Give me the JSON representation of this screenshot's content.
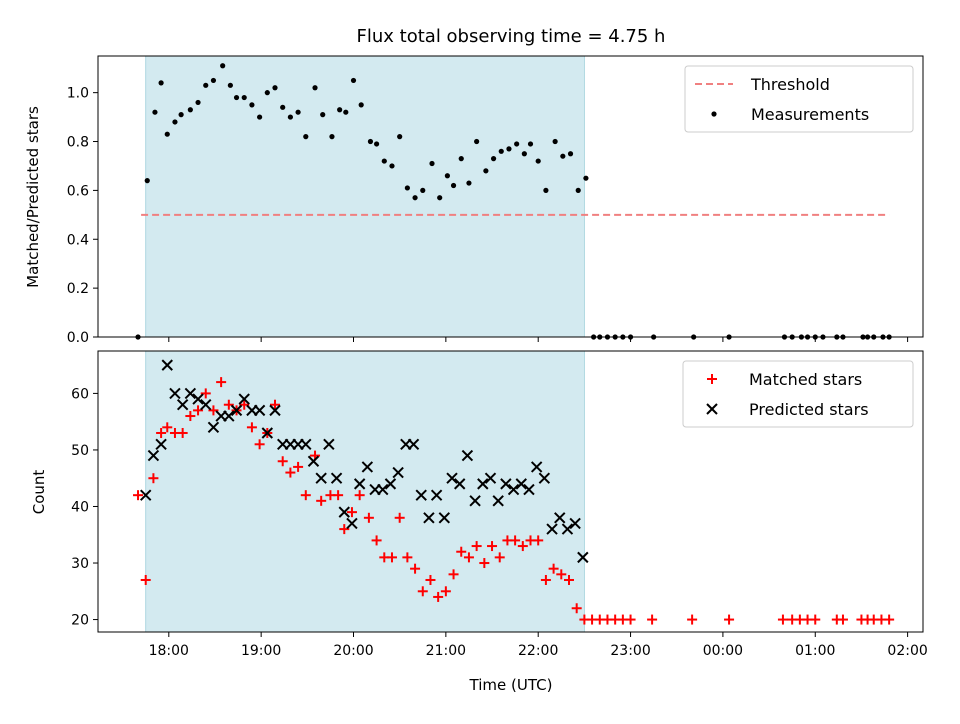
{
  "chart_data": [
    {
      "type": "scatter",
      "title": "Flux total observing time = 4.75 h",
      "xlabel": "",
      "ylabel": "Matched/Predicted stars",
      "ylim": [
        0,
        1.15
      ],
      "xlim": [
        "17:14",
        "02:10"
      ],
      "yticks": [
        "0.0",
        "0.2",
        "0.4",
        "0.6",
        "0.8",
        "1.0"
      ],
      "shaded_interval": {
        "start": "17:45",
        "end": "22:30",
        "color": "#d3eaf0"
      },
      "legend": {
        "position": "top-right",
        "entries": [
          "Threshold",
          "Measurements"
        ]
      },
      "threshold": {
        "name": "Threshold",
        "value": 0.5,
        "x_start": "17:42",
        "x_end": "01:48",
        "color": "#f08080"
      },
      "series": [
        {
          "name": "Measurements",
          "color": "#000000",
          "points": [
            [
              "17:40",
              0.0
            ],
            [
              "17:46",
              0.64
            ],
            [
              "17:51",
              0.92
            ],
            [
              "17:55",
              1.04
            ],
            [
              "17:59",
              0.83
            ],
            [
              "18:04",
              0.88
            ],
            [
              "18:08",
              0.91
            ],
            [
              "18:14",
              0.93
            ],
            [
              "18:19",
              0.96
            ],
            [
              "18:24",
              1.03
            ],
            [
              "18:29",
              1.05
            ],
            [
              "18:35",
              1.11
            ],
            [
              "18:40",
              1.03
            ],
            [
              "18:44",
              0.98
            ],
            [
              "18:49",
              0.98
            ],
            [
              "18:54",
              0.95
            ],
            [
              "18:59",
              0.9
            ],
            [
              "19:04",
              1.0
            ],
            [
              "19:09",
              1.02
            ],
            [
              "19:14",
              0.94
            ],
            [
              "19:19",
              0.9
            ],
            [
              "19:24",
              0.92
            ],
            [
              "19:29",
              0.82
            ],
            [
              "19:35",
              1.02
            ],
            [
              "19:40",
              0.91
            ],
            [
              "19:46",
              0.82
            ],
            [
              "19:51",
              0.93
            ],
            [
              "19:55",
              0.92
            ],
            [
              "20:00",
              1.05
            ],
            [
              "20:05",
              0.95
            ],
            [
              "20:11",
              0.8
            ],
            [
              "20:15",
              0.79
            ],
            [
              "20:20",
              0.72
            ],
            [
              "20:25",
              0.7
            ],
            [
              "20:30",
              0.82
            ],
            [
              "20:35",
              0.61
            ],
            [
              "20:40",
              0.57
            ],
            [
              "20:45",
              0.6
            ],
            [
              "20:51",
              0.71
            ],
            [
              "20:56",
              0.57
            ],
            [
              "21:01",
              0.66
            ],
            [
              "21:05",
              0.62
            ],
            [
              "21:10",
              0.73
            ],
            [
              "21:15",
              0.63
            ],
            [
              "21:20",
              0.8
            ],
            [
              "21:26",
              0.68
            ],
            [
              "21:31",
              0.73
            ],
            [
              "21:36",
              0.76
            ],
            [
              "21:41",
              0.77
            ],
            [
              "21:46",
              0.79
            ],
            [
              "21:51",
              0.75
            ],
            [
              "21:55",
              0.79
            ],
            [
              "22:00",
              0.72
            ],
            [
              "22:05",
              0.6
            ],
            [
              "22:11",
              0.8
            ],
            [
              "22:16",
              0.74
            ],
            [
              "22:21",
              0.75
            ],
            [
              "22:26",
              0.6
            ],
            [
              "22:31",
              0.65
            ],
            [
              "22:36",
              0.0
            ],
            [
              "22:40",
              0.0
            ],
            [
              "22:45",
              0.0
            ],
            [
              "22:50",
              0.0
            ],
            [
              "22:55",
              0.0
            ],
            [
              "23:00",
              0.0
            ],
            [
              "23:15",
              0.0
            ],
            [
              "23:41",
              0.0
            ],
            [
              "00:04",
              0.0
            ],
            [
              "00:40",
              0.0
            ],
            [
              "00:45",
              0.0
            ],
            [
              "00:51",
              0.0
            ],
            [
              "00:55",
              0.0
            ],
            [
              "01:00",
              0.0
            ],
            [
              "01:05",
              0.0
            ],
            [
              "01:14",
              0.0
            ],
            [
              "01:18",
              0.0
            ],
            [
              "01:31",
              0.0
            ],
            [
              "01:34",
              0.0
            ],
            [
              "01:38",
              0.0
            ],
            [
              "01:44",
              0.0
            ],
            [
              "01:48",
              0.0
            ]
          ]
        }
      ]
    },
    {
      "type": "scatter",
      "title": "",
      "xlabel": "Time (UTC)",
      "ylabel": "Count",
      "ylim": [
        17.8,
        67.5
      ],
      "xlim": [
        "17:14",
        "02:10"
      ],
      "yticks": [
        "20",
        "30",
        "40",
        "50",
        "60"
      ],
      "xticks": [
        "18:00",
        "19:00",
        "20:00",
        "21:00",
        "22:00",
        "23:00",
        "00:00",
        "01:00",
        "02:00"
      ],
      "shaded_interval": {
        "start": "17:45",
        "end": "22:30",
        "color": "#d3eaf0"
      },
      "legend": {
        "position": "top-right",
        "entries": [
          "Matched stars",
          "Predicted stars"
        ]
      },
      "series": [
        {
          "name": "Matched stars",
          "marker": "plus",
          "color": "#ff0000",
          "points": [
            [
              "17:40",
              42
            ],
            [
              "17:45",
              27
            ],
            [
              "17:50",
              45
            ],
            [
              "17:55",
              53
            ],
            [
              "17:59",
              54
            ],
            [
              "18:04",
              53
            ],
            [
              "18:09",
              53
            ],
            [
              "18:14",
              56
            ],
            [
              "18:19",
              57
            ],
            [
              "18:24",
              60
            ],
            [
              "18:29",
              57
            ],
            [
              "18:34",
              62
            ],
            [
              "18:39",
              58
            ],
            [
              "18:44",
              57
            ],
            [
              "18:49",
              58
            ],
            [
              "18:54",
              54
            ],
            [
              "18:59",
              51
            ],
            [
              "19:04",
              53
            ],
            [
              "19:09",
              58
            ],
            [
              "19:14",
              48
            ],
            [
              "19:19",
              46
            ],
            [
              "19:24",
              47
            ],
            [
              "19:29",
              42
            ],
            [
              "19:35",
              49
            ],
            [
              "19:39",
              41
            ],
            [
              "19:45",
              42
            ],
            [
              "19:50",
              42
            ],
            [
              "19:54",
              36
            ],
            [
              "19:59",
              39
            ],
            [
              "20:04",
              42
            ],
            [
              "20:10",
              38
            ],
            [
              "20:15",
              34
            ],
            [
              "20:20",
              31
            ],
            [
              "20:25",
              31
            ],
            [
              "20:30",
              38
            ],
            [
              "20:35",
              31
            ],
            [
              "20:40",
              29
            ],
            [
              "20:45",
              25
            ],
            [
              "20:50",
              27
            ],
            [
              "20:55",
              24
            ],
            [
              "21:00",
              25
            ],
            [
              "21:05",
              28
            ],
            [
              "21:10",
              32
            ],
            [
              "21:15",
              31
            ],
            [
              "21:20",
              33
            ],
            [
              "21:25",
              30
            ],
            [
              "21:30",
              33
            ],
            [
              "21:35",
              31
            ],
            [
              "21:40",
              34
            ],
            [
              "21:45",
              34
            ],
            [
              "21:50",
              33
            ],
            [
              "21:55",
              34
            ],
            [
              "22:00",
              34
            ],
            [
              "22:05",
              27
            ],
            [
              "22:10",
              29
            ],
            [
              "22:15",
              28
            ],
            [
              "22:20",
              27
            ],
            [
              "22:25",
              22
            ],
            [
              "22:30",
              20
            ],
            [
              "22:35",
              20
            ],
            [
              "22:40",
              20
            ],
            [
              "22:45",
              20
            ],
            [
              "22:50",
              20
            ],
            [
              "22:55",
              20
            ],
            [
              "23:00",
              20
            ],
            [
              "23:14",
              20
            ],
            [
              "23:40",
              20
            ],
            [
              "00:04",
              20
            ],
            [
              "00:39",
              20
            ],
            [
              "00:45",
              20
            ],
            [
              "00:50",
              20
            ],
            [
              "00:55",
              20
            ],
            [
              "01:00",
              20
            ],
            [
              "01:14",
              20
            ],
            [
              "01:18",
              20
            ],
            [
              "01:30",
              20
            ],
            [
              "01:34",
              20
            ],
            [
              "01:38",
              20
            ],
            [
              "01:43",
              20
            ],
            [
              "01:48",
              20
            ]
          ]
        },
        {
          "name": "Predicted stars",
          "marker": "x",
          "color": "#000000",
          "points": [
            [
              "17:45",
              42
            ],
            [
              "17:50",
              49
            ],
            [
              "17:55",
              51
            ],
            [
              "17:59",
              65
            ],
            [
              "18:04",
              60
            ],
            [
              "18:09",
              58
            ],
            [
              "18:14",
              60
            ],
            [
              "18:19",
              59
            ],
            [
              "18:24",
              58
            ],
            [
              "18:29",
              54
            ],
            [
              "18:34",
              56
            ],
            [
              "18:39",
              56
            ],
            [
              "18:44",
              57
            ],
            [
              "18:49",
              59
            ],
            [
              "18:54",
              57
            ],
            [
              "18:59",
              57
            ],
            [
              "19:04",
              53
            ],
            [
              "19:09",
              57
            ],
            [
              "19:14",
              51
            ],
            [
              "19:19",
              51
            ],
            [
              "19:24",
              51
            ],
            [
              "19:29",
              51
            ],
            [
              "19:34",
              48
            ],
            [
              "19:39",
              45
            ],
            [
              "19:44",
              51
            ],
            [
              "19:49",
              45
            ],
            [
              "19:54",
              39
            ],
            [
              "19:59",
              37
            ],
            [
              "20:04",
              44
            ],
            [
              "20:09",
              47
            ],
            [
              "20:14",
              43
            ],
            [
              "20:19",
              43
            ],
            [
              "20:24",
              44
            ],
            [
              "20:29",
              46
            ],
            [
              "20:34",
              51
            ],
            [
              "20:39",
              51
            ],
            [
              "20:44",
              42
            ],
            [
              "20:49",
              38
            ],
            [
              "20:54",
              42
            ],
            [
              "20:59",
              38
            ],
            [
              "21:04",
              45
            ],
            [
              "21:09",
              44
            ],
            [
              "21:14",
              49
            ],
            [
              "21:19",
              41
            ],
            [
              "21:24",
              44
            ],
            [
              "21:29",
              45
            ],
            [
              "21:34",
              41
            ],
            [
              "21:39",
              44
            ],
            [
              "21:44",
              43
            ],
            [
              "21:49",
              44
            ],
            [
              "21:54",
              43
            ],
            [
              "21:59",
              47
            ],
            [
              "22:04",
              45
            ],
            [
              "22:09",
              36
            ],
            [
              "22:14",
              38
            ],
            [
              "22:19",
              36
            ],
            [
              "22:24",
              37
            ],
            [
              "22:29",
              31
            ]
          ]
        }
      ]
    }
  ]
}
